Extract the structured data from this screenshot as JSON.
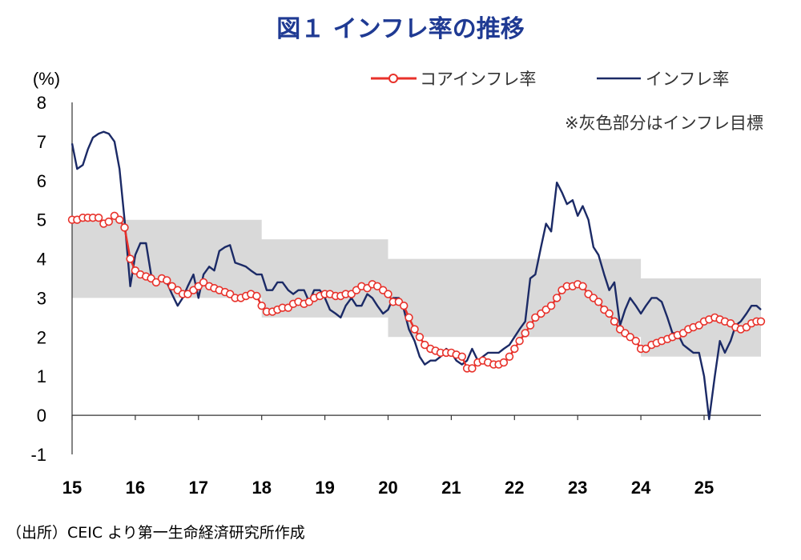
{
  "chart_data": {
    "type": "line",
    "title": "図１ インフレ率の推移",
    "ylabel": "(%)",
    "ylim": [
      -1,
      8
    ],
    "yticks": [
      "8",
      "7",
      "6",
      "5",
      "4",
      "3",
      "2",
      "1",
      "0",
      "-1"
    ],
    "ytick_values": [
      8,
      7,
      6,
      5,
      4,
      3,
      2,
      1,
      0,
      -1
    ],
    "xlim": [
      2015,
      2025.9
    ],
    "xticks": [
      "15",
      "16",
      "17",
      "18",
      "19",
      "20",
      "21",
      "22",
      "23",
      "24",
      "25"
    ],
    "xtick_values": [
      2015,
      2016,
      2017,
      2018,
      2019,
      2020,
      2021,
      2022,
      2023,
      2024,
      2025
    ],
    "grid": false,
    "legend_position": "top-right",
    "target_band_note": "※灰色部分はインフレ目標",
    "target_band": [
      {
        "x0": 2015,
        "x1": 2018,
        "low": 3.0,
        "high": 5.0
      },
      {
        "x0": 2018,
        "x1": 2020,
        "low": 2.5,
        "high": 4.5
      },
      {
        "x0": 2020,
        "x1": 2024,
        "low": 2.0,
        "high": 4.0
      },
      {
        "x0": 2024,
        "x1": 2025.9,
        "low": 1.5,
        "high": 3.5
      }
    ],
    "series": [
      {
        "name": "コアインフレ率",
        "color": "#e8312a",
        "marker": "circle-open",
        "points": [
          [
            2015.0,
            5.0
          ],
          [
            2015.08,
            5.0
          ],
          [
            2015.17,
            5.05
          ],
          [
            2015.25,
            5.05
          ],
          [
            2015.33,
            5.05
          ],
          [
            2015.42,
            5.05
          ],
          [
            2015.5,
            4.9
          ],
          [
            2015.58,
            4.95
          ],
          [
            2015.67,
            5.1
          ],
          [
            2015.75,
            5.0
          ],
          [
            2015.83,
            4.8
          ],
          [
            2015.92,
            4.0
          ],
          [
            2016.0,
            3.7
          ],
          [
            2016.08,
            3.6
          ],
          [
            2016.17,
            3.55
          ],
          [
            2016.25,
            3.5
          ],
          [
            2016.33,
            3.4
          ],
          [
            2016.42,
            3.5
          ],
          [
            2016.5,
            3.45
          ],
          [
            2016.58,
            3.3
          ],
          [
            2016.67,
            3.2
          ],
          [
            2016.75,
            3.1
          ],
          [
            2016.83,
            3.1
          ],
          [
            2016.92,
            3.2
          ],
          [
            2017.0,
            3.3
          ],
          [
            2017.08,
            3.4
          ],
          [
            2017.17,
            3.3
          ],
          [
            2017.25,
            3.25
          ],
          [
            2017.33,
            3.2
          ],
          [
            2017.42,
            3.15
          ],
          [
            2017.5,
            3.1
          ],
          [
            2017.58,
            3.0
          ],
          [
            2017.67,
            3.0
          ],
          [
            2017.75,
            3.05
          ],
          [
            2017.83,
            3.1
          ],
          [
            2017.92,
            3.05
          ],
          [
            2018.0,
            2.8
          ],
          [
            2018.08,
            2.65
          ],
          [
            2018.17,
            2.65
          ],
          [
            2018.25,
            2.7
          ],
          [
            2018.33,
            2.75
          ],
          [
            2018.42,
            2.75
          ],
          [
            2018.5,
            2.85
          ],
          [
            2018.58,
            2.9
          ],
          [
            2018.67,
            2.85
          ],
          [
            2018.75,
            2.9
          ],
          [
            2018.83,
            3.0
          ],
          [
            2018.92,
            3.05
          ],
          [
            2019.0,
            3.1
          ],
          [
            2019.08,
            3.1
          ],
          [
            2019.17,
            3.05
          ],
          [
            2019.25,
            3.05
          ],
          [
            2019.33,
            3.1
          ],
          [
            2019.42,
            3.1
          ],
          [
            2019.5,
            3.2
          ],
          [
            2019.58,
            3.3
          ],
          [
            2019.67,
            3.25
          ],
          [
            2019.75,
            3.35
          ],
          [
            2019.83,
            3.3
          ],
          [
            2019.92,
            3.2
          ],
          [
            2020.0,
            3.1
          ],
          [
            2020.08,
            2.9
          ],
          [
            2020.17,
            2.9
          ],
          [
            2020.25,
            2.8
          ],
          [
            2020.33,
            2.5
          ],
          [
            2020.42,
            2.2
          ],
          [
            2020.5,
            2.0
          ],
          [
            2020.58,
            1.8
          ],
          [
            2020.67,
            1.7
          ],
          [
            2020.75,
            1.65
          ],
          [
            2020.83,
            1.6
          ],
          [
            2020.92,
            1.6
          ],
          [
            2021.0,
            1.6
          ],
          [
            2021.08,
            1.55
          ],
          [
            2021.17,
            1.5
          ],
          [
            2021.25,
            1.2
          ],
          [
            2021.33,
            1.2
          ],
          [
            2021.42,
            1.35
          ],
          [
            2021.5,
            1.4
          ],
          [
            2021.58,
            1.35
          ],
          [
            2021.67,
            1.3
          ],
          [
            2021.75,
            1.3
          ],
          [
            2021.83,
            1.35
          ],
          [
            2021.92,
            1.5
          ],
          [
            2022.0,
            1.7
          ],
          [
            2022.08,
            1.9
          ],
          [
            2022.17,
            2.1
          ],
          [
            2022.25,
            2.3
          ],
          [
            2022.33,
            2.5
          ],
          [
            2022.42,
            2.6
          ],
          [
            2022.5,
            2.7
          ],
          [
            2022.58,
            2.8
          ],
          [
            2022.67,
            3.0
          ],
          [
            2022.75,
            3.2
          ],
          [
            2022.83,
            3.3
          ],
          [
            2022.92,
            3.3
          ],
          [
            2023.0,
            3.35
          ],
          [
            2023.08,
            3.3
          ],
          [
            2023.17,
            3.1
          ],
          [
            2023.25,
            3.0
          ],
          [
            2023.33,
            2.9
          ],
          [
            2023.42,
            2.7
          ],
          [
            2023.5,
            2.6
          ],
          [
            2023.58,
            2.4
          ],
          [
            2023.67,
            2.2
          ],
          [
            2023.75,
            2.1
          ],
          [
            2023.83,
            2.0
          ],
          [
            2023.92,
            1.9
          ],
          [
            2024.0,
            1.7
          ],
          [
            2024.08,
            1.7
          ],
          [
            2024.17,
            1.8
          ],
          [
            2024.25,
            1.85
          ],
          [
            2024.33,
            1.9
          ],
          [
            2024.42,
            1.95
          ],
          [
            2024.5,
            2.0
          ],
          [
            2024.58,
            2.05
          ],
          [
            2024.67,
            2.1
          ],
          [
            2024.75,
            2.2
          ],
          [
            2024.83,
            2.25
          ],
          [
            2024.92,
            2.3
          ],
          [
            2025.0,
            2.4
          ],
          [
            2025.08,
            2.45
          ],
          [
            2025.17,
            2.5
          ],
          [
            2025.25,
            2.45
          ],
          [
            2025.33,
            2.4
          ],
          [
            2025.42,
            2.35
          ],
          [
            2025.5,
            2.25
          ],
          [
            2025.58,
            2.2
          ],
          [
            2025.67,
            2.25
          ],
          [
            2025.75,
            2.35
          ],
          [
            2025.83,
            2.4
          ],
          [
            2025.9,
            2.4
          ]
        ]
      },
      {
        "name": "インフレ率",
        "color": "#1b2a66",
        "marker": "none",
        "points": [
          [
            2015.0,
            6.95
          ],
          [
            2015.08,
            6.3
          ],
          [
            2015.17,
            6.4
          ],
          [
            2015.25,
            6.8
          ],
          [
            2015.33,
            7.1
          ],
          [
            2015.42,
            7.2
          ],
          [
            2015.5,
            7.25
          ],
          [
            2015.58,
            7.2
          ],
          [
            2015.67,
            7.0
          ],
          [
            2015.75,
            6.3
          ],
          [
            2015.83,
            5.0
          ],
          [
            2015.92,
            3.3
          ],
          [
            2016.0,
            4.1
          ],
          [
            2016.08,
            4.4
          ],
          [
            2016.17,
            4.4
          ],
          [
            2016.25,
            3.6
          ],
          [
            2016.33,
            3.4
          ],
          [
            2016.42,
            3.5
          ],
          [
            2016.5,
            3.4
          ],
          [
            2016.58,
            3.1
          ],
          [
            2016.67,
            2.8
          ],
          [
            2016.75,
            3.0
          ],
          [
            2016.83,
            3.3
          ],
          [
            2016.92,
            3.6
          ],
          [
            2017.0,
            3.0
          ],
          [
            2017.08,
            3.6
          ],
          [
            2017.17,
            3.8
          ],
          [
            2017.25,
            3.7
          ],
          [
            2017.33,
            4.2
          ],
          [
            2017.42,
            4.3
          ],
          [
            2017.5,
            4.35
          ],
          [
            2017.58,
            3.9
          ],
          [
            2017.67,
            3.85
          ],
          [
            2017.75,
            3.8
          ],
          [
            2017.83,
            3.7
          ],
          [
            2017.92,
            3.6
          ],
          [
            2018.0,
            3.6
          ],
          [
            2018.08,
            3.2
          ],
          [
            2018.17,
            3.2
          ],
          [
            2018.25,
            3.4
          ],
          [
            2018.33,
            3.4
          ],
          [
            2018.42,
            3.2
          ],
          [
            2018.5,
            3.1
          ],
          [
            2018.58,
            3.2
          ],
          [
            2018.67,
            3.2
          ],
          [
            2018.75,
            2.9
          ],
          [
            2018.83,
            3.2
          ],
          [
            2018.92,
            3.2
          ],
          [
            2019.0,
            3.0
          ],
          [
            2019.08,
            2.7
          ],
          [
            2019.17,
            2.6
          ],
          [
            2019.25,
            2.5
          ],
          [
            2019.33,
            2.8
          ],
          [
            2019.42,
            3.0
          ],
          [
            2019.5,
            2.8
          ],
          [
            2019.58,
            2.8
          ],
          [
            2019.67,
            3.1
          ],
          [
            2019.75,
            3.0
          ],
          [
            2019.83,
            2.8
          ],
          [
            2019.92,
            2.6
          ],
          [
            2020.0,
            2.7
          ],
          [
            2020.08,
            3.0
          ],
          [
            2020.17,
            3.0
          ],
          [
            2020.25,
            2.7
          ],
          [
            2020.33,
            2.2
          ],
          [
            2020.42,
            1.9
          ],
          [
            2020.5,
            1.5
          ],
          [
            2020.58,
            1.3
          ],
          [
            2020.67,
            1.4
          ],
          [
            2020.75,
            1.4
          ],
          [
            2020.83,
            1.5
          ],
          [
            2020.92,
            1.7
          ],
          [
            2021.0,
            1.6
          ],
          [
            2021.08,
            1.4
          ],
          [
            2021.17,
            1.3
          ],
          [
            2021.25,
            1.4
          ],
          [
            2021.33,
            1.7
          ],
          [
            2021.42,
            1.4
          ],
          [
            2021.5,
            1.5
          ],
          [
            2021.58,
            1.6
          ],
          [
            2021.67,
            1.6
          ],
          [
            2021.75,
            1.6
          ],
          [
            2021.83,
            1.7
          ],
          [
            2021.92,
            1.8
          ],
          [
            2022.0,
            2.0
          ],
          [
            2022.08,
            2.2
          ],
          [
            2022.17,
            2.4
          ],
          [
            2022.25,
            3.5
          ],
          [
            2022.33,
            3.6
          ],
          [
            2022.42,
            4.3
          ],
          [
            2022.5,
            4.9
          ],
          [
            2022.58,
            4.7
          ],
          [
            2022.67,
            5.95
          ],
          [
            2022.75,
            5.7
          ],
          [
            2022.83,
            5.4
          ],
          [
            2022.92,
            5.5
          ],
          [
            2023.0,
            5.1
          ],
          [
            2023.08,
            5.35
          ],
          [
            2023.17,
            5.0
          ],
          [
            2023.25,
            4.3
          ],
          [
            2023.33,
            4.1
          ],
          [
            2023.42,
            3.6
          ],
          [
            2023.5,
            3.2
          ],
          [
            2023.58,
            3.4
          ],
          [
            2023.67,
            2.3
          ],
          [
            2023.75,
            2.7
          ],
          [
            2023.83,
            3.0
          ],
          [
            2023.92,
            2.8
          ],
          [
            2024.0,
            2.6
          ],
          [
            2024.08,
            2.8
          ],
          [
            2024.17,
            3.0
          ],
          [
            2024.25,
            3.0
          ],
          [
            2024.33,
            2.9
          ],
          [
            2024.42,
            2.5
          ],
          [
            2024.5,
            2.1
          ],
          [
            2024.58,
            2.1
          ],
          [
            2024.67,
            1.8
          ],
          [
            2024.75,
            1.7
          ],
          [
            2024.83,
            1.6
          ],
          [
            2024.92,
            1.6
          ],
          [
            2025.0,
            1.0
          ],
          [
            2025.08,
            -0.1
          ],
          [
            2025.17,
            1.0
          ],
          [
            2025.25,
            1.9
          ],
          [
            2025.33,
            1.6
          ],
          [
            2025.42,
            1.9
          ],
          [
            2025.5,
            2.3
          ],
          [
            2025.58,
            2.4
          ],
          [
            2025.67,
            2.6
          ],
          [
            2025.75,
            2.8
          ],
          [
            2025.83,
            2.8
          ],
          [
            2025.9,
            2.7
          ]
        ]
      }
    ]
  },
  "source_text": "（出所）CEIC より第一生命経済研究所作成"
}
